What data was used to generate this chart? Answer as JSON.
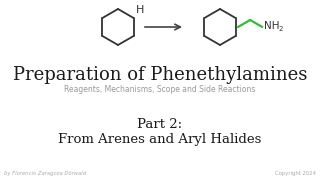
{
  "bg_color": "#ffffff",
  "title": "Preparation of Phenethylamines",
  "subtitle": "Reagents, Mechanisms, Scope and Side Reactions",
  "part_line1": "Part 2:",
  "part_line2": "From Arenes and Aryl Halides",
  "footer_left": "by Florencio Zaragoza Dörwald",
  "footer_right": "Copyright 2024",
  "title_color": "#1a1a1a",
  "subtitle_color": "#999999",
  "part_color": "#1a1a1a",
  "footer_color": "#aaaaaa",
  "arrow_color": "#444444",
  "benzene_color": "#333333",
  "chain_color": "#33bb33",
  "nh2_color": "#333333",
  "h_color": "#333333"
}
